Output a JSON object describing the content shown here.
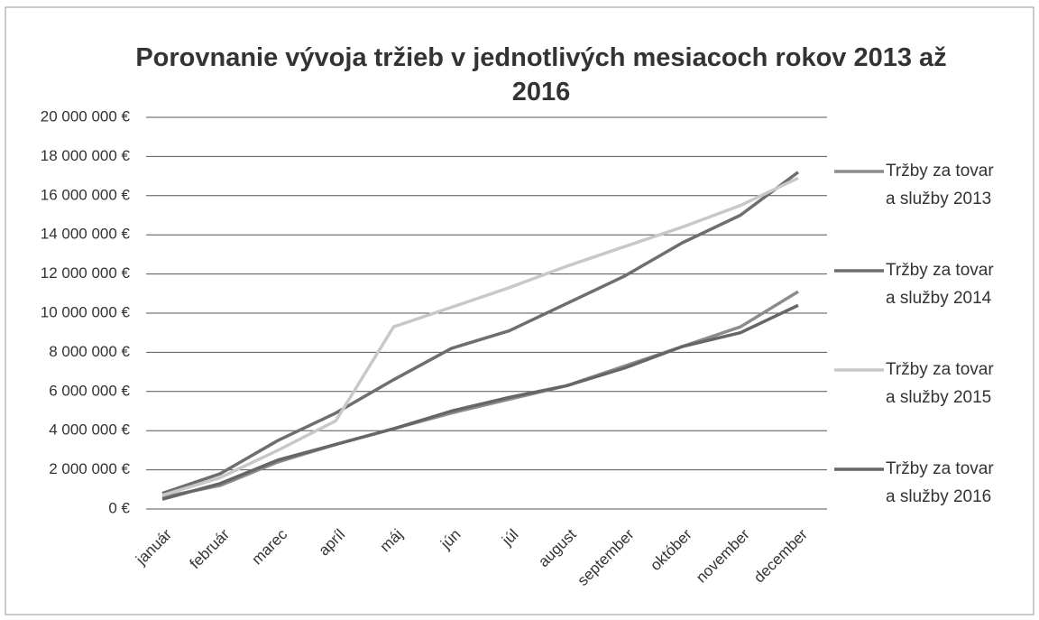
{
  "chart_data": {
    "type": "line",
    "title": "Porovnanie vývoja tržieb v jednotlivých mesiacoch rokov 2013 až 2016",
    "categories": [
      "január",
      "február",
      "marec",
      "apríl",
      "máj",
      "jún",
      "júl",
      "august",
      "september",
      "október",
      "november",
      "december"
    ],
    "series": [
      {
        "name": "Tržby za tovar a služby 2013",
        "color": "#8c8c8c",
        "values": [
          600000,
          1200000,
          2400000,
          3300000,
          4100000,
          4900000,
          5600000,
          6300000,
          7300000,
          8300000,
          9300000,
          11100000
        ]
      },
      {
        "name": "Tržby za tovar a služby 2014",
        "color": "#6e6e6e",
        "values": [
          800000,
          1800000,
          3500000,
          4900000,
          6600000,
          8200000,
          9100000,
          10500000,
          11900000,
          13600000,
          15000000,
          17200000
        ]
      },
      {
        "name": "Tržby za tovar a služby 2015",
        "color": "#c8c8c8",
        "values": [
          700000,
          1600000,
          3000000,
          4500000,
          9300000,
          10300000,
          11300000,
          12400000,
          13400000,
          14400000,
          15500000,
          16900000
        ]
      },
      {
        "name": "Tržby za tovar a služby 2016",
        "color": "#666666",
        "values": [
          500000,
          1300000,
          2500000,
          3300000,
          4100000,
          5000000,
          5700000,
          6300000,
          7200000,
          8300000,
          9000000,
          10400000
        ]
      }
    ],
    "ylim": [
      0,
      20000000
    ],
    "yticks": [
      {
        "value": 0,
        "label": "0 €"
      },
      {
        "value": 2000000,
        "label": "2 000 000 €"
      },
      {
        "value": 4000000,
        "label": "4 000 000 €"
      },
      {
        "value": 6000000,
        "label": "6 000 000 €"
      },
      {
        "value": 8000000,
        "label": "8 000 000 €"
      },
      {
        "value": 10000000,
        "label": "10 000 000 €"
      },
      {
        "value": 12000000,
        "label": "12 000 000 €"
      },
      {
        "value": 14000000,
        "label": "14 000 000 €"
      },
      {
        "value": 16000000,
        "label": "16 000 000 €"
      },
      {
        "value": 18000000,
        "label": "18 000 000 €"
      },
      {
        "value": 20000000,
        "label": "20 000 000 €"
      }
    ],
    "grid": true,
    "legend": "right"
  }
}
